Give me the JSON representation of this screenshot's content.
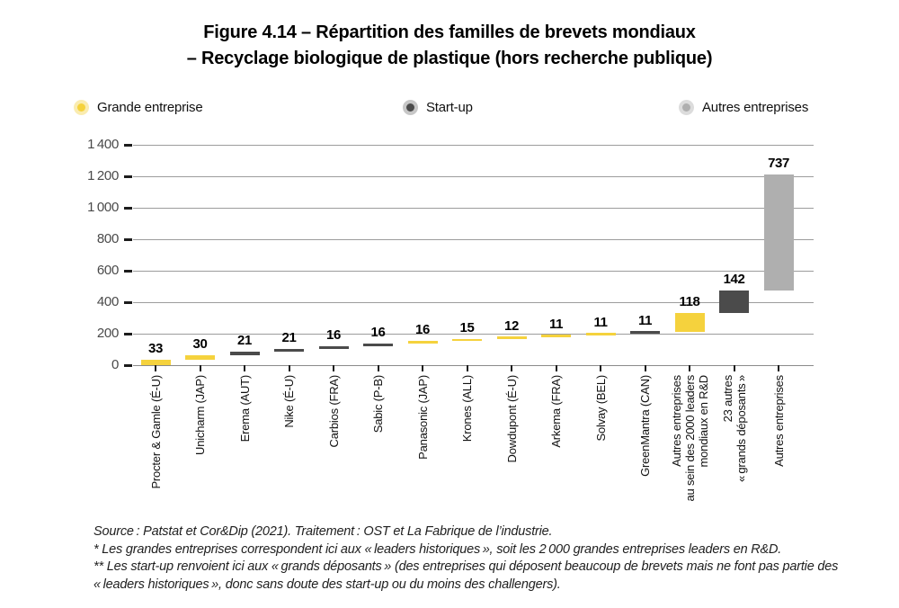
{
  "figure": {
    "title_line1": "Figure 4.14 – Répartition des familles de brevets mondiaux",
    "title_line2": "– Recyclage biologique de plastique (hors recherche publique)"
  },
  "legend": {
    "items": [
      {
        "label": "Grande entreprise",
        "type": "grande"
      },
      {
        "label": "Start-up",
        "type": "startup"
      },
      {
        "label": "Autres entreprises",
        "type": "autres"
      }
    ]
  },
  "colors": {
    "grande": "#F5D23D",
    "grande_halo": "#FAECB0",
    "startup": "#4B4B4B",
    "startup_halo": "#C7C7C7",
    "autres": "#AFAFAF",
    "autres_halo": "#DCDCDC",
    "grid": "#9C9C9C",
    "zero_line": "#8A8A8A"
  },
  "chart_data": {
    "type": "bar",
    "variant": "waterfall",
    "title": "Répartition des familles de brevets mondiaux – Recyclage biologique de plastique (hors recherche publique)",
    "xlabel": "",
    "ylabel": "",
    "ylim": [
      0,
      1400
    ],
    "ytick_interval": 200,
    "ytick_labels": [
      "0",
      "200",
      "400",
      "600",
      "800",
      "1 000",
      "1 200",
      "1 400"
    ],
    "grid": true,
    "legend_position": "top",
    "legend_entries": [
      "Grande entreprise",
      "Start-up",
      "Autres entreprises"
    ],
    "bars": [
      {
        "category": "Procter & Gamle (É-U)",
        "value": 33,
        "start": 0,
        "series": "grande"
      },
      {
        "category": "Unicharm (JAP)",
        "value": 30,
        "start": 33,
        "series": "grande"
      },
      {
        "category": "Erema (AUT)",
        "value": 21,
        "start": 63,
        "series": "startup"
      },
      {
        "category": "Nike (É-U)",
        "value": 21,
        "start": 84,
        "series": "startup"
      },
      {
        "category": "Carbios (FRA)",
        "value": 16,
        "start": 105,
        "series": "startup"
      },
      {
        "category": "Sabic (P-B)",
        "value": 16,
        "start": 121,
        "series": "startup"
      },
      {
        "category": "Panasonic (JAP)",
        "value": 16,
        "start": 137,
        "series": "grande"
      },
      {
        "category": "Krones (ALL)",
        "value": 15,
        "start": 153,
        "series": "grande"
      },
      {
        "category": "Dowdupont (É-U)",
        "value": 12,
        "start": 168,
        "series": "grande"
      },
      {
        "category": "Arkema (FRA)",
        "value": 11,
        "start": 180,
        "series": "grande"
      },
      {
        "category": "Solvay (BEL)",
        "value": 11,
        "start": 191,
        "series": "grande"
      },
      {
        "category": "GreenMantra (CAN)",
        "value": 11,
        "start": 202,
        "series": "startup"
      },
      {
        "category": "Autres entreprises\nau sein des 2000 leaders\nmondiaux en R&D",
        "value": 118,
        "start": 213,
        "series": "grande"
      },
      {
        "category": "23 autres\n« grands déposants »",
        "value": 142,
        "start": 331,
        "series": "startup"
      },
      {
        "category": "Autres entreprises",
        "value": 737,
        "start": 473,
        "series": "autres"
      }
    ]
  },
  "footnotes": {
    "source": "Source : Patstat et Cor&Dip (2021). Traitement : OST et La Fabrique de l’industrie.",
    "note1": "* Les grandes entreprises correspondent ici aux « leaders historiques », soit les 2 000 grandes entreprises leaders en R&D.",
    "note2": "** Les start-up renvoient ici aux « grands déposants » (des entreprises qui déposent beaucoup de brevets mais ne font pas partie des « leaders historiques », donc sans doute des start-up ou du moins des challengers)."
  }
}
